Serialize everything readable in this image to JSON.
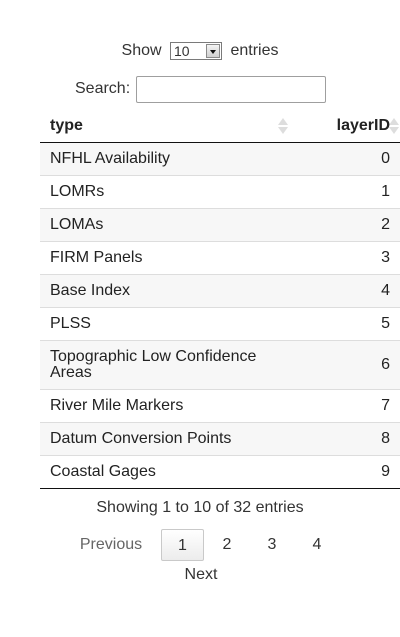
{
  "length_menu": {
    "prefix": "Show",
    "selected": "10",
    "suffix": "entries"
  },
  "search": {
    "label": "Search:",
    "value": "",
    "placeholder": ""
  },
  "table": {
    "columns": [
      "type",
      "layerID"
    ],
    "rows": [
      {
        "type": "NFHL Availability",
        "layerID": "0"
      },
      {
        "type": "LOMRs",
        "layerID": "1"
      },
      {
        "type": "LOMAs",
        "layerID": "2"
      },
      {
        "type": "FIRM Panels",
        "layerID": "3"
      },
      {
        "type": "Base Index",
        "layerID": "4"
      },
      {
        "type": "PLSS",
        "layerID": "5"
      },
      {
        "type": "Topographic Low Confidence Areas",
        "layerID": "6"
      },
      {
        "type": "River Mile Markers",
        "layerID": "7"
      },
      {
        "type": "Datum Conversion Points",
        "layerID": "8"
      },
      {
        "type": "Coastal Gages",
        "layerID": "9"
      }
    ]
  },
  "info": "Showing 1 to 10 of 32 entries",
  "pagination": {
    "previous": "Previous",
    "pages": [
      "1",
      "2",
      "3",
      "4"
    ],
    "current": "1",
    "next": "Next"
  }
}
